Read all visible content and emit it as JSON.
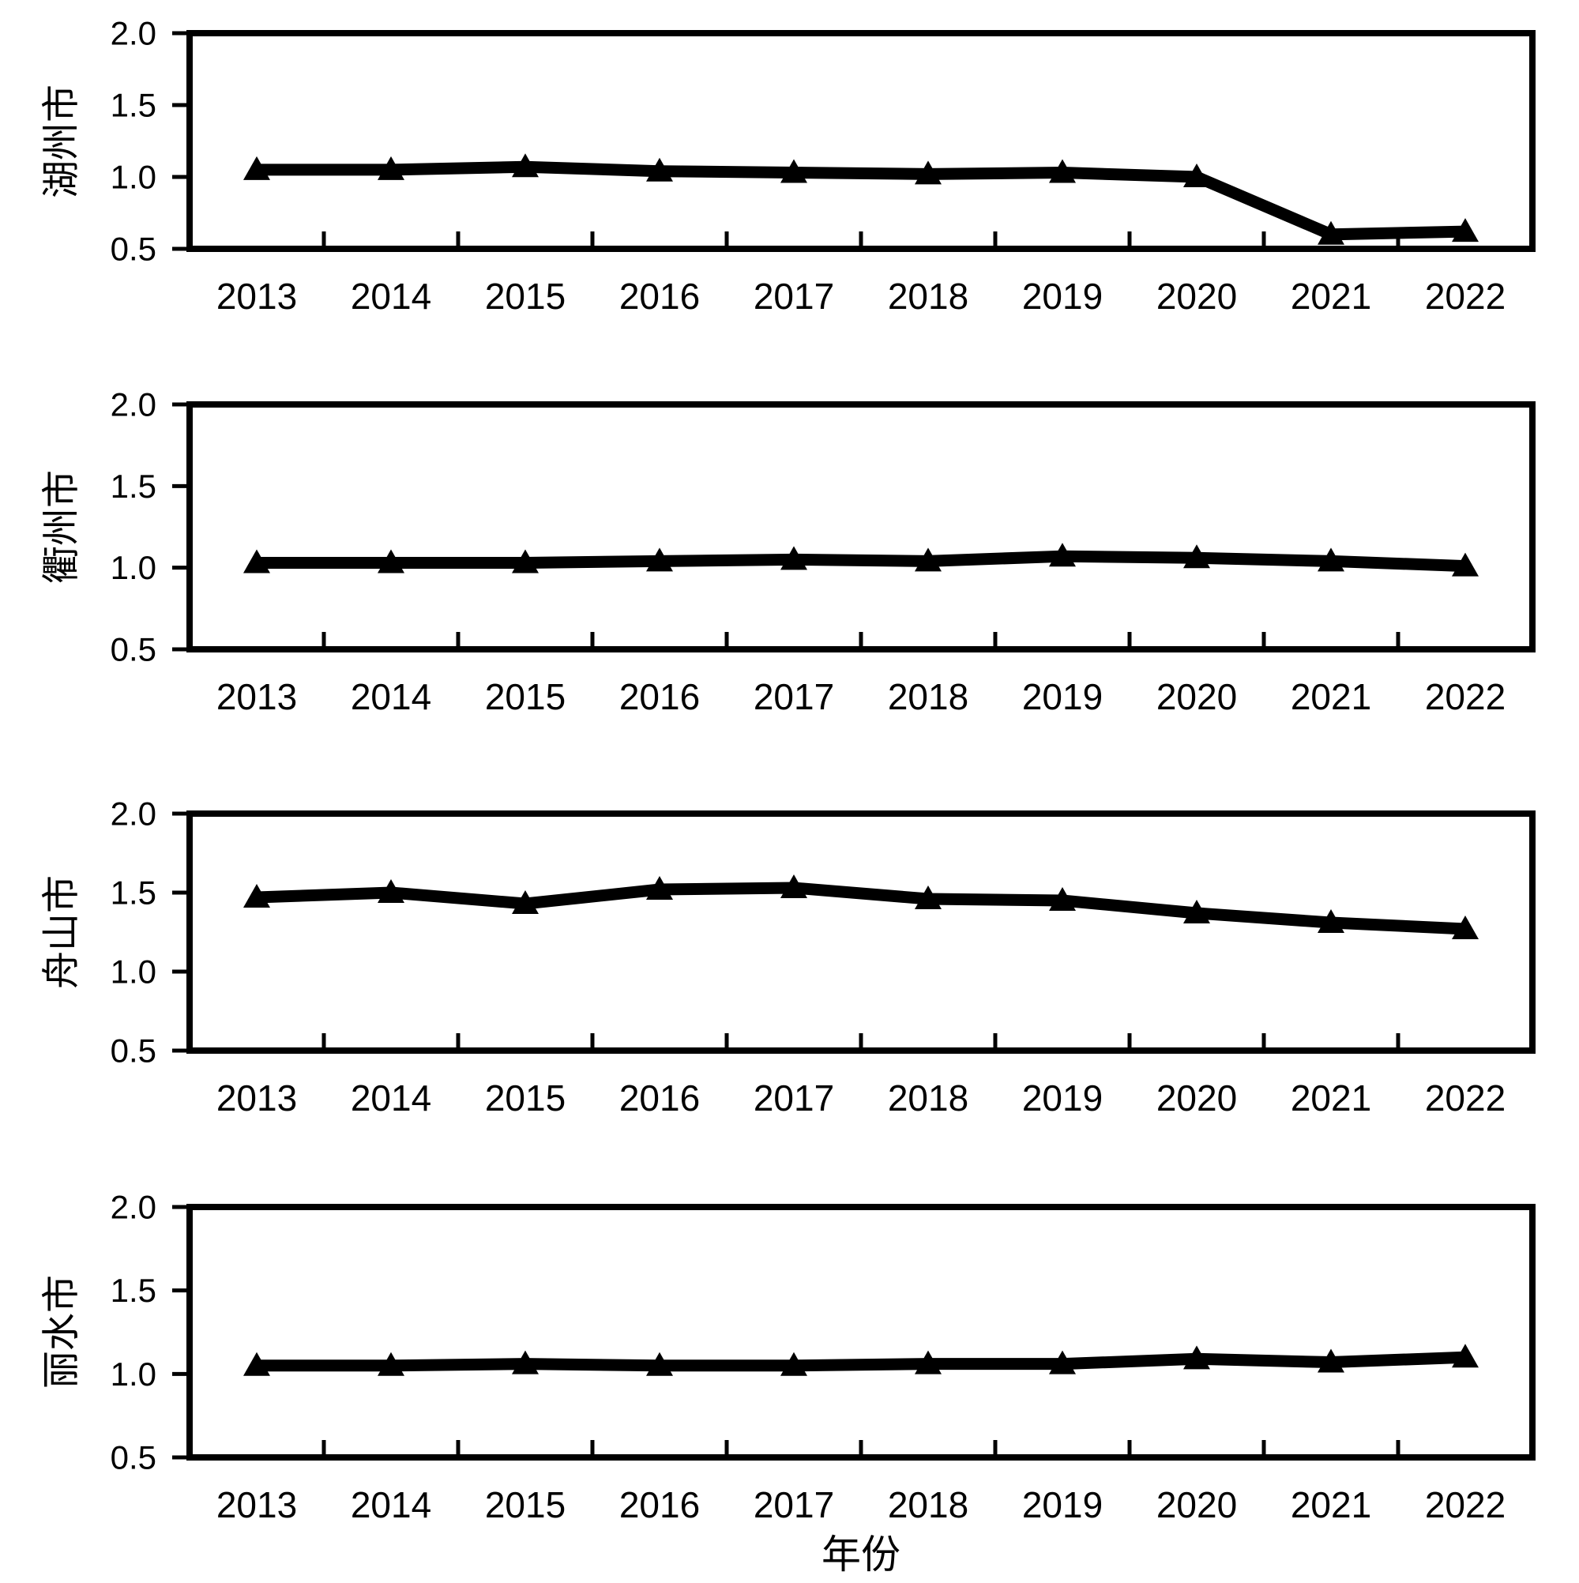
{
  "figure": {
    "xlabel": "年份",
    "ink_color": "#000000",
    "background_color": "#ffffff"
  },
  "chart_data": [
    {
      "type": "line",
      "title": "",
      "xlabel": "",
      "ylabel": "湖州市",
      "ylim": [
        0.5,
        2.0
      ],
      "yticks": [
        0.5,
        1.0,
        1.5,
        2.0
      ],
      "grid": false,
      "legend": "none",
      "categories": [
        "2013",
        "2014",
        "2015",
        "2016",
        "2017",
        "2018",
        "2019",
        "2020",
        "2021",
        "2022"
      ],
      "series": [
        {
          "name": "湖州市",
          "marker": "triangle-up",
          "color": "#000000",
          "values": [
            1.05,
            1.05,
            1.07,
            1.04,
            1.03,
            1.02,
            1.03,
            1.0,
            0.6,
            0.62
          ]
        }
      ]
    },
    {
      "type": "line",
      "title": "",
      "xlabel": "",
      "ylabel": "衢州市",
      "ylim": [
        0.5,
        2.0
      ],
      "yticks": [
        0.5,
        1.0,
        1.5,
        2.0
      ],
      "grid": false,
      "legend": "none",
      "categories": [
        "2013",
        "2014",
        "2015",
        "2016",
        "2017",
        "2018",
        "2019",
        "2020",
        "2021",
        "2022"
      ],
      "series": [
        {
          "name": "衢州市",
          "marker": "triangle-up",
          "color": "#000000",
          "values": [
            1.03,
            1.03,
            1.03,
            1.04,
            1.05,
            1.04,
            1.07,
            1.06,
            1.04,
            1.01
          ]
        }
      ]
    },
    {
      "type": "line",
      "title": "",
      "xlabel": "",
      "ylabel": "舟山市",
      "ylim": [
        0.5,
        2.0
      ],
      "yticks": [
        0.5,
        1.0,
        1.5,
        2.0
      ],
      "grid": false,
      "legend": "none",
      "categories": [
        "2013",
        "2014",
        "2015",
        "2016",
        "2017",
        "2018",
        "2019",
        "2020",
        "2021",
        "2022"
      ],
      "series": [
        {
          "name": "舟山市",
          "marker": "triangle-up",
          "color": "#000000",
          "values": [
            1.47,
            1.5,
            1.43,
            1.52,
            1.53,
            1.46,
            1.45,
            1.37,
            1.31,
            1.27
          ]
        }
      ]
    },
    {
      "type": "line",
      "title": "",
      "xlabel": "年份",
      "ylabel": "丽水市",
      "ylim": [
        0.5,
        2.0
      ],
      "yticks": [
        0.5,
        1.0,
        1.5,
        2.0
      ],
      "grid": false,
      "legend": "none",
      "categories": [
        "2013",
        "2014",
        "2015",
        "2016",
        "2017",
        "2018",
        "2019",
        "2020",
        "2021",
        "2022"
      ],
      "series": [
        {
          "name": "丽水市",
          "marker": "triangle-up",
          "color": "#000000",
          "values": [
            1.05,
            1.05,
            1.06,
            1.05,
            1.05,
            1.06,
            1.06,
            1.09,
            1.07,
            1.1
          ]
        }
      ]
    }
  ]
}
